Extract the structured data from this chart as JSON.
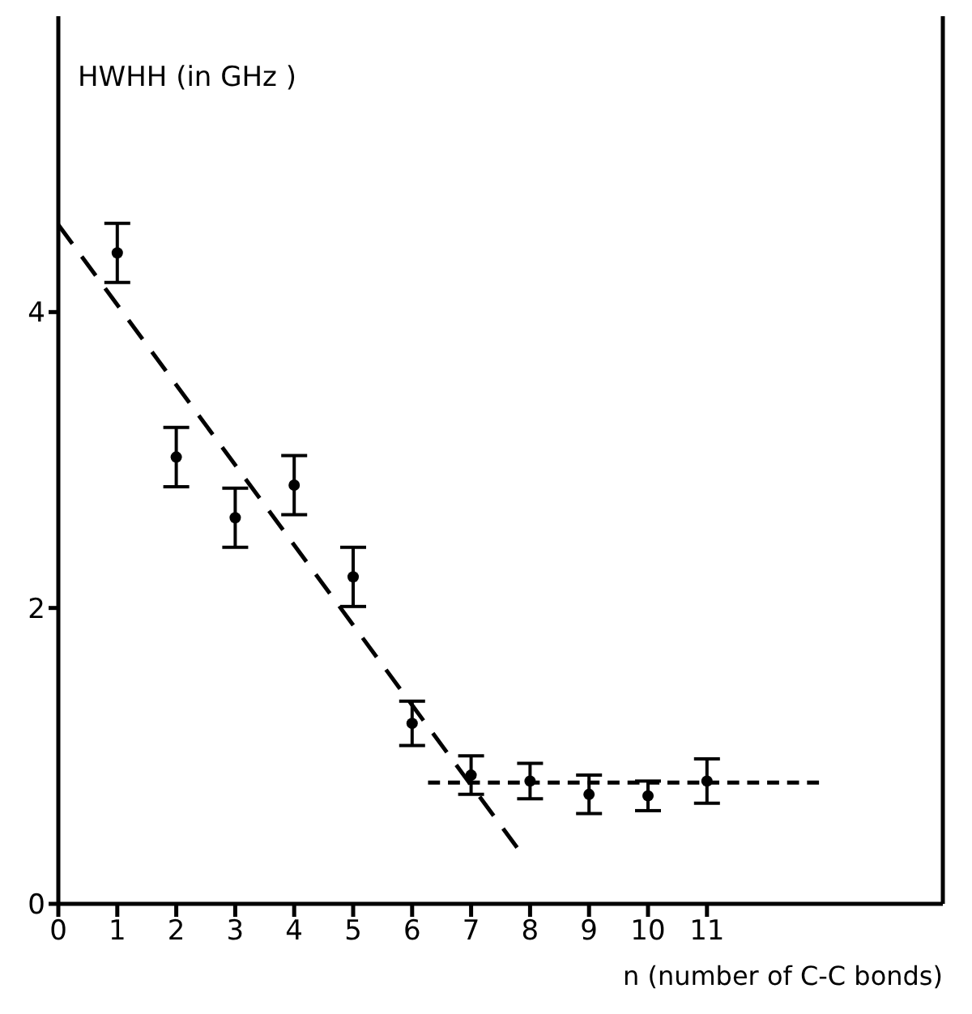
{
  "chart_data": {
    "type": "scatter",
    "ylabel": "HWHH (in GHz )",
    "xlabel": "n (number of C-C bonds)",
    "xlim": [
      0,
      15
    ],
    "xticks": [
      0,
      1,
      2,
      3,
      4,
      5,
      6,
      7,
      8,
      9,
      10,
      11
    ],
    "ylim": [
      0,
      6
    ],
    "yticks": [
      0,
      2,
      4
    ],
    "grid": false,
    "legend": false,
    "marker": "circle",
    "series": [
      {
        "color": "#000000",
        "x": [
          1,
          2,
          3,
          4,
          5,
          6,
          7,
          8,
          9,
          10,
          11
        ],
        "values": [
          4.4,
          3.02,
          2.61,
          2.83,
          2.21,
          1.22,
          0.87,
          0.83,
          0.74,
          0.73,
          0.83
        ],
        "errors": [
          0.2,
          0.2,
          0.2,
          0.2,
          0.2,
          0.15,
          0.13,
          0.12,
          0.13,
          0.1,
          0.15
        ]
      },
      {
        "type": "line",
        "color": "#000000",
        "line_style": "dashed",
        "marker": "none",
        "x": [
          0,
          7.78
        ],
        "values": [
          4.59,
          0.38
        ]
      },
      {
        "type": "line",
        "color": "#000000",
        "line_style": "dashed",
        "marker": "none",
        "x": [
          6.27,
          12.9
        ],
        "values": [
          0.82,
          0.82
        ]
      }
    ]
  }
}
